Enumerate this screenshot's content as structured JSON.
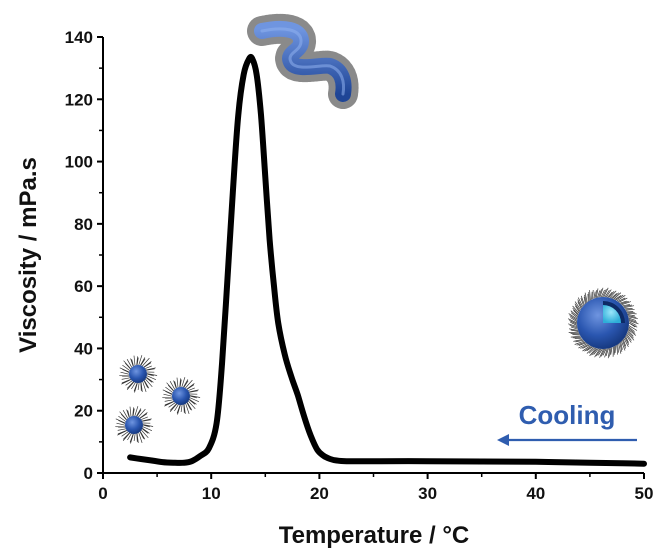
{
  "chart_data": {
    "type": "line",
    "xlabel": "Temperature / °C",
    "ylabel": "Viscosity / mPa.s",
    "xlim": [
      0,
      50
    ],
    "ylim": [
      0,
      140
    ],
    "xticks": [
      0,
      10,
      20,
      30,
      40,
      50
    ],
    "yticks": [
      0,
      20,
      40,
      60,
      80,
      100,
      120,
      140
    ],
    "grid": false,
    "series": [
      {
        "color": "#000000",
        "x": [
          2.5,
          3.5,
          4.5,
          5.5,
          6.5,
          7.5,
          8.2,
          9.0,
          9.8,
          10.5,
          11.0,
          11.5,
          12.0,
          12.5,
          13.0,
          13.5,
          13.8,
          14.2,
          14.6,
          15.0,
          15.4,
          15.8,
          16.2,
          16.8,
          17.4,
          18.0,
          18.6,
          19.2,
          19.8,
          20.4,
          21.0,
          21.6,
          22.5,
          25.0,
          30.0,
          35.0,
          40.0,
          45.0,
          48.0,
          50.0
        ],
        "y": [
          5.0,
          4.5,
          4.0,
          3.5,
          3.3,
          3.3,
          3.8,
          5.5,
          8.0,
          16.0,
          35.0,
          62.0,
          90.0,
          115.0,
          128.0,
          133.0,
          133.0,
          128.0,
          115.0,
          95.0,
          75.0,
          60.0,
          48.0,
          38.0,
          31.0,
          25.0,
          18.0,
          12.0,
          7.5,
          5.5,
          4.5,
          4.0,
          3.8,
          3.8,
          3.8,
          3.7,
          3.6,
          3.3,
          3.1,
          3.0
        ]
      }
    ],
    "annotations": [
      {
        "text": "Cooling",
        "color": "#2f5daf",
        "arrow": "right-to-left"
      }
    ]
  },
  "icons": {
    "micelle_spherical": "spherical-micelle-icon",
    "micelle_worm": "worm-micelle-icon",
    "vesicle": "vesicle-icon"
  },
  "colors": {
    "accent": "#2f5daf",
    "particle": "#2a56b0",
    "particle_dark": "#173a82",
    "vesicle_inner": "#3cc3e8"
  }
}
